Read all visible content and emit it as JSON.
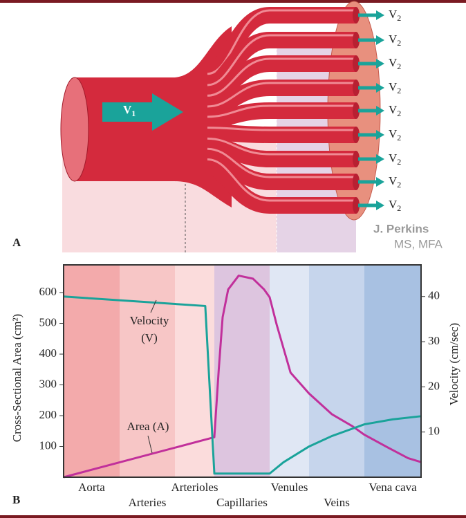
{
  "panel_a": {
    "label": "A",
    "v1": {
      "base": "V",
      "sub": "1"
    },
    "v2": {
      "base": "V",
      "sub": "2"
    },
    "signature": "J. Perkins",
    "credentials": "MS, MFA"
  },
  "panel_b": {
    "label": "B"
  },
  "chart_data": {
    "type": "line",
    "ylabel": "Cross-Sectional Area (cm²)",
    "y2label": "Velocity (cm/sec)",
    "categories": [
      "Aorta",
      "Arteries",
      "Arterioles",
      "Capillaries",
      "Venules",
      "Veins",
      "Vena cava"
    ],
    "band_colors": [
      "#f3aaab",
      "#f7c6c6",
      "#fbdcdc",
      "#ddc5df",
      "#e0e7f4",
      "#c6d5ec",
      "#a8c1e2"
    ],
    "xlim": [
      0,
      7
    ],
    "ylim": [
      0,
      690
    ],
    "yticks": [
      100,
      200,
      300,
      400,
      500,
      600
    ],
    "y2lim": [
      0,
      47
    ],
    "y2ticks": [
      10,
      20,
      30,
      40
    ],
    "series": [
      {
        "name": "Area (A)",
        "color": "#c1309b",
        "x": [
          0,
          3,
          3.08,
          3.15,
          3.25,
          3.44,
          3.7,
          3.9,
          4,
          4.18,
          4.53,
          5,
          5.41,
          5.79,
          6,
          6.4,
          6.77,
          7
        ],
        "values": [
          0,
          130,
          350,
          520,
          610,
          655,
          645,
          610,
          585,
          495,
          340,
          272,
          205,
          165,
          138,
          98,
          62,
          49
        ]
      },
      {
        "name": "Velocity",
        "color": "#1aa39a",
        "axis": "y2",
        "x": [
          0,
          2.77,
          3,
          4,
          4.35,
          5,
          5.41,
          6,
          6.5,
          7
        ],
        "values": [
          40,
          37.9,
          0.8,
          0.8,
          3.3,
          6.8,
          9.1,
          11.7,
          12.8,
          13.5
        ]
      }
    ],
    "annotations": [
      "(V)"
    ]
  }
}
